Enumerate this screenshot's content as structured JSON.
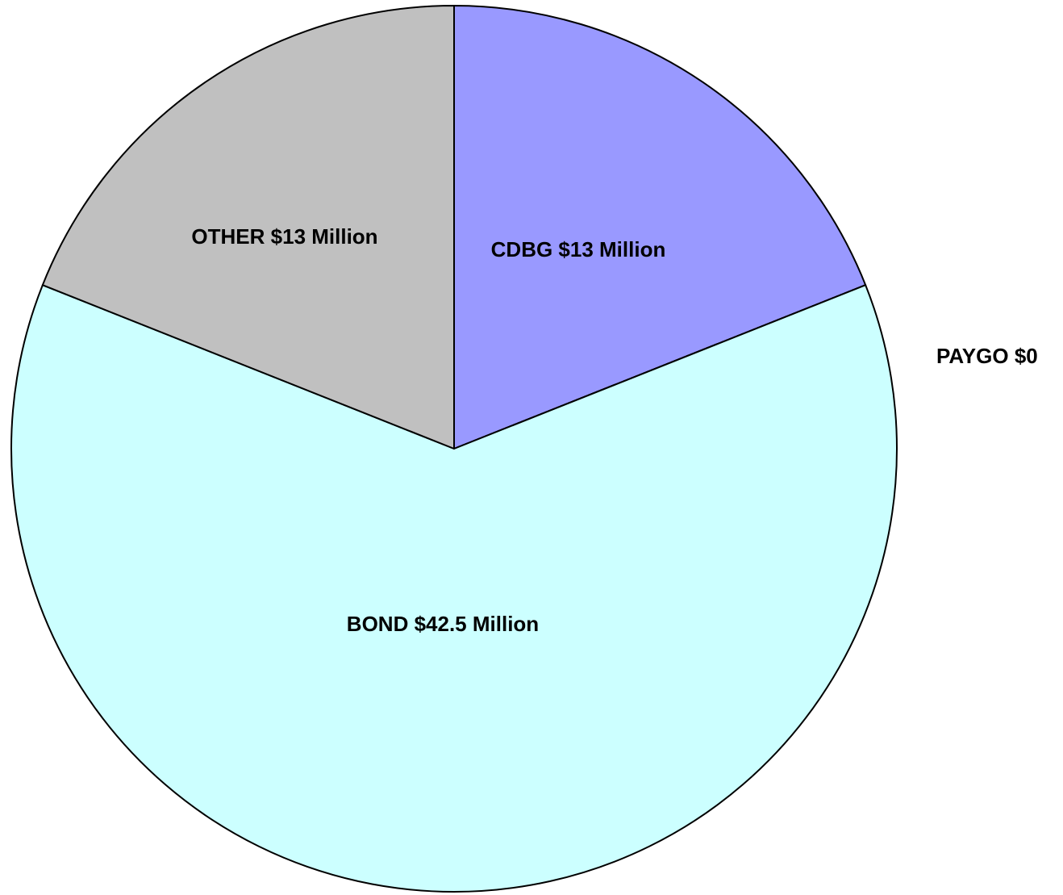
{
  "chart_data": {
    "type": "pie",
    "title": "",
    "start_angle_deg": 0,
    "direction": "clockwise",
    "slices": [
      {
        "name": "CDBG",
        "value": 13,
        "label": "CDBG $13 Million",
        "color": "#9999ff"
      },
      {
        "name": "PAYGO",
        "value": 0,
        "label": "PAYGO $0",
        "color": "#993366"
      },
      {
        "name": "BOND",
        "value": 42.5,
        "label": "BOND $42.5 Million",
        "color": "#ccffff"
      },
      {
        "name": "OTHER",
        "value": 13,
        "label": "OTHER $13 Million",
        "color": "#c0c0c0"
      }
    ]
  }
}
